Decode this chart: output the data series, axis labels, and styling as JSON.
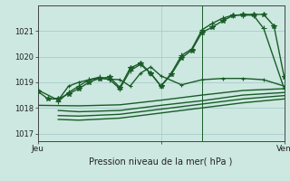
{
  "xlabel": "Pression niveau de la mer( hPa )",
  "background_color": "#cce8e0",
  "grid_color": "#aacccc",
  "line_color": "#1a5c28",
  "ylim": [
    1016.7,
    1022.0
  ],
  "yticks": [
    1017,
    1018,
    1019,
    1020,
    1021
  ],
  "xlim": [
    0,
    48
  ],
  "xtick_positions": [
    0,
    24,
    48
  ],
  "xtick_labels": [
    "Jeu",
    "",
    "Ven"
  ],
  "vline_x": 32,
  "series": [
    {
      "x": [
        0,
        2,
        4,
        6,
        8,
        10,
        12,
        14,
        16,
        18,
        20,
        22,
        24,
        26,
        28,
        30,
        32,
        34,
        36,
        38,
        40,
        42,
        44,
        46,
        48
      ],
      "y": [
        1018.65,
        1018.35,
        1018.35,
        1018.55,
        1018.75,
        1019.0,
        1019.15,
        1019.2,
        1018.8,
        1019.55,
        1019.75,
        1019.35,
        1018.85,
        1019.3,
        1019.95,
        1020.25,
        1020.95,
        1021.15,
        1021.4,
        1021.6,
        1021.65,
        1021.65,
        1021.65,
        1021.2,
        1019.2
      ],
      "marker": "*",
      "markersize": 4,
      "lw": 1.0
    },
    {
      "x": [
        4,
        6,
        8,
        10,
        12,
        14,
        16,
        18,
        20,
        22,
        24,
        26,
        28,
        30,
        32,
        34,
        36,
        38,
        40,
        42,
        44,
        48
      ],
      "y": [
        1018.25,
        1018.6,
        1018.85,
        1019.1,
        1019.2,
        1019.1,
        1018.75,
        1019.45,
        1019.7,
        1019.35,
        1018.85,
        1019.35,
        1020.05,
        1020.3,
        1021.05,
        1021.3,
        1021.5,
        1021.62,
        1021.62,
        1021.62,
        1021.1,
        1018.75
      ],
      "marker": "+",
      "markersize": 4,
      "lw": 1.0
    },
    {
      "x": [
        0,
        4,
        6,
        8,
        10,
        12,
        16,
        18,
        20,
        22,
        24,
        28,
        32,
        36,
        40,
        44,
        48
      ],
      "y": [
        1018.7,
        1018.3,
        1018.85,
        1019.0,
        1019.1,
        1019.15,
        1019.1,
        1018.85,
        1019.35,
        1019.6,
        1019.25,
        1018.9,
        1019.1,
        1019.15,
        1019.15,
        1019.1,
        1018.85
      ],
      "marker": "+",
      "markersize": 3,
      "lw": 1.0
    },
    {
      "x": [
        0,
        8,
        16,
        24,
        32,
        40,
        48
      ],
      "y": [
        1018.1,
        1018.08,
        1018.12,
        1018.3,
        1018.5,
        1018.68,
        1018.75
      ],
      "marker": null,
      "lw": 1.0
    },
    {
      "x": [
        4,
        8,
        16,
        24,
        32,
        40,
        48
      ],
      "y": [
        1017.9,
        1017.85,
        1017.9,
        1018.1,
        1018.28,
        1018.5,
        1018.6
      ],
      "marker": null,
      "lw": 1.0
    },
    {
      "x": [
        4,
        8,
        16,
        24,
        32,
        40,
        48
      ],
      "y": [
        1017.7,
        1017.68,
        1017.75,
        1017.95,
        1018.15,
        1018.35,
        1018.48
      ],
      "marker": null,
      "lw": 1.0
    },
    {
      "x": [
        4,
        8,
        16,
        24,
        32,
        40,
        48
      ],
      "y": [
        1017.55,
        1017.52,
        1017.6,
        1017.8,
        1018.0,
        1018.2,
        1018.35
      ],
      "marker": null,
      "lw": 1.0
    }
  ]
}
